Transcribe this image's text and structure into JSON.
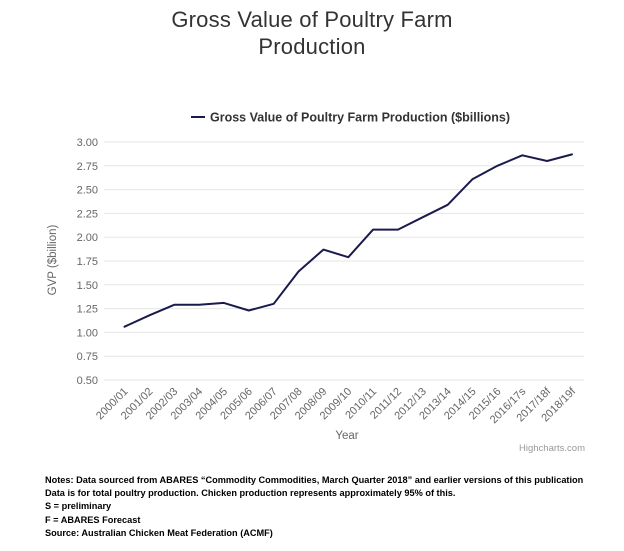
{
  "title_line1": "Gross Value of Poultry Farm",
  "title_line2": "Production",
  "credits": "Highcharts.com",
  "notes": [
    "Notes: Data sourced from ABARES “Commodity Commodities, March Quarter 2018” and earlier versions of this publication",
    "Data is for total poultry production. Chicken production represents approximately 95% of this.",
    "S = preliminary",
    "F = ABARES Forecast",
    "Source: Australian Chicken Meat Federation (ACMF)"
  ],
  "colors": {
    "series": "#1a1a4d",
    "grid": "#e6e6e6",
    "axis_text": "#666666"
  },
  "chart_data": {
    "type": "line",
    "categories": [
      "2000/01",
      "2001/02",
      "2002/03",
      "2003/04",
      "2004/05",
      "2005/06",
      "2006/07",
      "2007/08",
      "2008/09",
      "2009/10",
      "2010/11",
      "2011/12",
      "2012/13",
      "2013/14",
      "2014/15",
      "2015/16",
      "2016/17s",
      "2017/18f",
      "2018/19f"
    ],
    "series": [
      {
        "name": "Gross Value of Poultry Farm Production ($billions)",
        "values": [
          1.06,
          1.18,
          1.29,
          1.29,
          1.31,
          1.23,
          1.3,
          1.64,
          1.87,
          1.79,
          2.08,
          2.08,
          2.21,
          2.34,
          2.61,
          2.75,
          2.86,
          2.8,
          2.87
        ]
      }
    ],
    "xlabel": "Year",
    "ylabel": "GVP ($billion)",
    "ylim": [
      0.5,
      3.0
    ],
    "yticks": [
      "0.50",
      "0.75",
      "1.00",
      "1.25",
      "1.50",
      "1.75",
      "2.00",
      "2.25",
      "2.50",
      "2.75",
      "3.00"
    ],
    "grid": true,
    "legend": "top-center"
  }
}
